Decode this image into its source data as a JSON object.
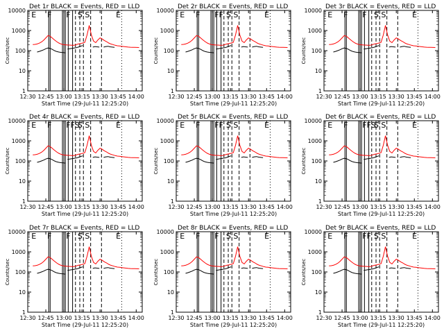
{
  "chart_data": [
    {
      "type": "line",
      "title": "Det 1r BLACK = Events, RED = LLD",
      "xlabel": "Start Time (29-Jul-11 12:25:20)",
      "ylabel": "Counts/sec",
      "yscale": "log",
      "ylim": [
        1,
        10000
      ],
      "xlim": [
        12.5,
        14.0833
      ],
      "x_ticks": [
        "12:30",
        "12:45",
        "13:00",
        "13:15",
        "13:30",
        "13:45",
        "14:00"
      ],
      "y_ticks": [
        "1",
        "10",
        "100",
        "1000",
        "10000"
      ],
      "markers": [
        {
          "label": "E",
          "x": 12.55
        },
        {
          "label": "F",
          "x": 12.77
        },
        {
          "label": "F",
          "x": 13.03
        },
        {
          "label": "S",
          "x": 13.19
        },
        {
          "label": "S",
          "x": 13.29
        },
        {
          "label": "E",
          "x": 13.72
        }
      ],
      "series": [
        {
          "name": "Events",
          "color": "#000000"
        },
        {
          "name": "LLD",
          "color": "#ff0000"
        }
      ]
    },
    {
      "type": "line",
      "title": "Det 2r BLACK = Events, RED = LLD",
      "xlabel": "Start Time (29-Jul-11 12:25:20)",
      "ylabel": "Counts/sec",
      "yscale": "log",
      "ylim": [
        1,
        10000
      ],
      "xlim": [
        12.5,
        14.0833
      ],
      "x_ticks": [
        "12:30",
        "12:45",
        "13:00",
        "13:15",
        "13:30",
        "13:45",
        "14:00"
      ],
      "y_ticks": [
        "1",
        "10",
        "100",
        "1000",
        "10000"
      ],
      "markers": [
        {
          "label": "E",
          "x": 12.55
        },
        {
          "label": "F",
          "x": 12.77
        },
        {
          "label": "FF",
          "x": 13.03
        },
        {
          "label": "S",
          "x": 13.19
        },
        {
          "label": "S",
          "x": 13.29
        },
        {
          "label": "E",
          "x": 13.72
        }
      ],
      "series": [
        {
          "name": "Events",
          "color": "#000000"
        },
        {
          "name": "LLD",
          "color": "#ff0000"
        }
      ]
    },
    {
      "type": "line",
      "title": "Det 3r BLACK = Events, RED = LLD",
      "xlabel": "Start Time (29-Jul-11 12:25:20)",
      "ylabel": "Counts/sec",
      "yscale": "log",
      "ylim": [
        1,
        10000
      ],
      "xlim": [
        12.5,
        14.0833
      ],
      "x_ticks": [
        "12:30",
        "12:45",
        "13:00",
        "13:15",
        "13:30",
        "13:45",
        "14:00"
      ],
      "y_ticks": [
        "1",
        "10",
        "100",
        "1000",
        "10000"
      ],
      "markers": [
        {
          "label": "E",
          "x": 12.55
        },
        {
          "label": "F",
          "x": 12.77
        },
        {
          "label": "F",
          "x": 13.03
        },
        {
          "label": "S",
          "x": 13.19
        },
        {
          "label": "S",
          "x": 13.29
        },
        {
          "label": "E",
          "x": 13.72
        }
      ],
      "series": [
        {
          "name": "Events",
          "color": "#000000"
        },
        {
          "name": "LLD",
          "color": "#ff0000"
        }
      ]
    },
    {
      "type": "line",
      "title": "Det 4r BLACK = Events, RED = LLD",
      "xlabel": "Start Time (29-Jul-11 12:25:20)",
      "ylabel": "Counts/sec",
      "yscale": "log",
      "ylim": [
        1,
        10000
      ],
      "xlim": [
        12.5,
        14.0833
      ],
      "x_ticks": [
        "12:30",
        "12:45",
        "13:00",
        "13:15",
        "13:30",
        "13:45",
        "14:00"
      ],
      "y_ticks": [
        "1",
        "10",
        "100",
        "1000",
        "10000"
      ],
      "markers": [
        {
          "label": "E",
          "x": 12.55
        },
        {
          "label": "F",
          "x": 12.77
        },
        {
          "label": "FFS",
          "x": 13.03
        },
        {
          "label": "S",
          "x": 13.19
        },
        {
          "label": "S",
          "x": 13.29
        },
        {
          "label": "E",
          "x": 13.72
        }
      ],
      "series": [
        {
          "name": "Events",
          "color": "#000000"
        },
        {
          "name": "LLD",
          "color": "#ff0000"
        }
      ]
    },
    {
      "type": "line",
      "title": "Det 5r BLACK = Events, RED = LLD",
      "xlabel": "Start Time (29-Jul-11 12:25:20)",
      "ylabel": "Counts/sec",
      "yscale": "log",
      "ylim": [
        1,
        10000
      ],
      "xlim": [
        12.5,
        14.0833
      ],
      "x_ticks": [
        "12:30",
        "12:45",
        "13:00",
        "13:15",
        "13:30",
        "13:45",
        "14:00"
      ],
      "y_ticks": [
        "1",
        "10",
        "100",
        "1000",
        "10000"
      ],
      "markers": [
        {
          "label": "E",
          "x": 12.55
        },
        {
          "label": "F",
          "x": 12.77
        },
        {
          "label": "FF",
          "x": 13.03
        },
        {
          "label": "S",
          "x": 13.19
        },
        {
          "label": "S",
          "x": 13.29
        },
        {
          "label": "E",
          "x": 13.72
        }
      ],
      "series": [
        {
          "name": "Events",
          "color": "#000000"
        },
        {
          "name": "LLD",
          "color": "#ff0000"
        }
      ]
    },
    {
      "type": "line",
      "title": "Det 6r BLACK = Events, RED = LLD",
      "xlabel": "Start Time (29-Jul-11 12:25:20)",
      "ylabel": "Counts/sec",
      "yscale": "log",
      "ylim": [
        1,
        10000
      ],
      "xlim": [
        12.5,
        14.0833
      ],
      "x_ticks": [
        "12:30",
        "12:45",
        "13:00",
        "13:15",
        "13:30",
        "13:45",
        "14:00"
      ],
      "y_ticks": [
        "1",
        "10",
        "100",
        "1000",
        "10000"
      ],
      "markers": [
        {
          "label": "E",
          "x": 12.55
        },
        {
          "label": "F",
          "x": 12.77
        },
        {
          "label": "FFS",
          "x": 13.03
        },
        {
          "label": "S",
          "x": 13.19
        },
        {
          "label": "S",
          "x": 13.29
        },
        {
          "label": "E",
          "x": 13.72
        }
      ],
      "series": [
        {
          "name": "Events",
          "color": "#000000"
        },
        {
          "name": "LLD",
          "color": "#ff0000"
        }
      ]
    },
    {
      "type": "line",
      "title": "Det 7r BLACK = Events, RED = LLD",
      "xlabel": "Start Time (29-Jul-11 12:25:20)",
      "ylabel": "Counts/sec",
      "yscale": "log",
      "ylim": [
        1,
        10000
      ],
      "xlim": [
        12.5,
        14.0833
      ],
      "x_ticks": [
        "12:30",
        "12:45",
        "13:00",
        "13:15",
        "13:30",
        "13:45",
        "14:00"
      ],
      "y_ticks": [
        "1",
        "10",
        "100",
        "1000",
        "10000"
      ],
      "markers": [
        {
          "label": "E",
          "x": 12.55
        },
        {
          "label": "F",
          "x": 12.77
        },
        {
          "label": "F",
          "x": 13.03
        },
        {
          "label": "S",
          "x": 13.19
        },
        {
          "label": "S",
          "x": 13.29
        },
        {
          "label": "E",
          "x": 13.72
        }
      ],
      "series": [
        {
          "name": "Events",
          "color": "#000000"
        },
        {
          "name": "LLD",
          "color": "#ff0000"
        }
      ]
    },
    {
      "type": "line",
      "title": "Det 8r BLACK = Events, RED = LLD",
      "xlabel": "Start Time (29-Jul-11 12:25:20)",
      "ylabel": "Counts/sec",
      "yscale": "log",
      "ylim": [
        1,
        10000
      ],
      "xlim": [
        12.5,
        14.0833
      ],
      "x_ticks": [
        "12:30",
        "12:45",
        "13:00",
        "13:15",
        "13:30",
        "13:45",
        "14:00"
      ],
      "y_ticks": [
        "1",
        "10",
        "100",
        "1000",
        "10000"
      ],
      "markers": [
        {
          "label": "E",
          "x": 12.55
        },
        {
          "label": "F",
          "x": 12.77
        },
        {
          "label": "F",
          "x": 13.03
        },
        {
          "label": "S",
          "x": 13.19
        },
        {
          "label": "S",
          "x": 13.29
        },
        {
          "label": "E",
          "x": 13.72
        }
      ],
      "series": [
        {
          "name": "Events",
          "color": "#000000"
        },
        {
          "name": "LLD",
          "color": "#ff0000"
        }
      ]
    },
    {
      "type": "line",
      "title": "Det 9r BLACK = Events, RED = LLD",
      "xlabel": "Start Time (29-Jul-11 12:25:20)",
      "ylabel": "Counts/sec",
      "yscale": "log",
      "ylim": [
        1,
        10000
      ],
      "xlim": [
        12.5,
        14.0833
      ],
      "x_ticks": [
        "12:30",
        "12:45",
        "13:00",
        "13:15",
        "13:30",
        "13:45",
        "14:00"
      ],
      "y_ticks": [
        "1",
        "10",
        "100",
        "1000",
        "10000"
      ],
      "markers": [
        {
          "label": "E",
          "x": 12.55
        },
        {
          "label": "F",
          "x": 12.77
        },
        {
          "label": "FF",
          "x": 13.03
        },
        {
          "label": "S",
          "x": 13.19
        },
        {
          "label": "S",
          "x": 13.29
        },
        {
          "label": "E",
          "x": 13.72
        }
      ],
      "series": [
        {
          "name": "Events",
          "color": "#000000"
        },
        {
          "name": "LLD",
          "color": "#ff0000"
        }
      ]
    }
  ],
  "shared_series": {
    "x": [
      12.57,
      12.6,
      12.63,
      12.66,
      12.69,
      12.72,
      12.75,
      12.78,
      12.81,
      12.84,
      12.87,
      12.9,
      12.93,
      12.96,
      12.99,
      13.02,
      13.05,
      13.08,
      13.11,
      13.14,
      13.17,
      13.2,
      13.23,
      13.26,
      13.29,
      13.32,
      13.35,
      13.38,
      13.41,
      13.44,
      13.47,
      13.5,
      13.53,
      13.56,
      13.59,
      13.62,
      13.65,
      13.68,
      13.71,
      13.74,
      13.77,
      13.8,
      13.83,
      13.86,
      13.89,
      13.92,
      13.95,
      13.98,
      14.01,
      14.04
    ],
    "lld": [
      200,
      205,
      215,
      235,
      270,
      330,
      430,
      560,
      520,
      420,
      340,
      280,
      240,
      215,
      200,
      195,
      190,
      188,
      186,
      185,
      200,
      215,
      225,
      240,
      260,
      600,
      1800,
      600,
      300,
      250,
      340,
      430,
      380,
      320,
      280,
      240,
      215,
      200,
      185,
      175,
      170,
      165,
      160,
      155,
      150,
      148,
      146,
      145,
      144,
      143
    ],
    "events_segments": [
      {
        "x": [
          12.63,
          12.66,
          12.69,
          12.72,
          12.75,
          12.78,
          12.81,
          12.84,
          12.87,
          12.9,
          12.93,
          12.96,
          12.99,
          13.02
        ],
        "y": [
          85,
          92,
          100,
          110,
          125,
          135,
          130,
          115,
          100,
          90,
          85,
          82,
          80,
          78
        ]
      },
      {
        "x": [
          13.05,
          13.08,
          13.11,
          13.14,
          13.17,
          13.2,
          13.23,
          13.26
        ],
        "y": [
          120,
          125,
          130,
          135,
          140,
          150,
          165,
          180
        ]
      },
      {
        "x": [
          13.4,
          13.43,
          13.46,
          13.49
        ],
        "y": [
          150,
          160,
          155,
          150
        ]
      },
      {
        "x": [
          13.55,
          13.58,
          13.61,
          13.64,
          13.67,
          13.7
        ],
        "y": [
          150,
          160,
          165,
          155,
          150,
          145
        ]
      }
    ],
    "dashed_x": [
      13.16,
      13.22,
      13.27,
      13.37,
      13.52
    ],
    "solid_x": [
      12.79,
      12.81,
      12.98,
      13.0,
      13.02,
      13.06,
      13.12
    ],
    "dotted_x": [
      13.8
    ]
  }
}
